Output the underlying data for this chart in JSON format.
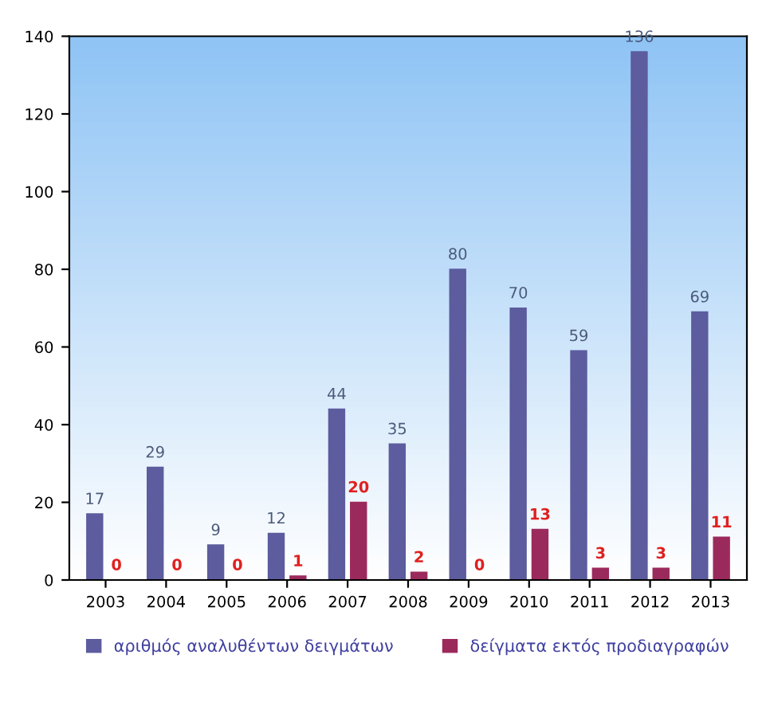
{
  "chart_data": {
    "type": "bar",
    "categories": [
      "2003",
      "2004",
      "2005",
      "2006",
      "2007",
      "2008",
      "2009",
      "2010",
      "2011",
      "2012",
      "2013"
    ],
    "series": [
      {
        "name": "αριθμός αναλυθέντων δειγμάτων",
        "color": "#5c5c9e",
        "values": [
          17,
          29,
          9,
          12,
          44,
          35,
          80,
          70,
          59,
          136,
          69
        ]
      },
      {
        "name": "δείγματα εκτός προδιαγραφών",
        "color": "#9b2a5c",
        "values": [
          0,
          0,
          0,
          1,
          20,
          2,
          0,
          13,
          3,
          3,
          11
        ]
      }
    ],
    "ylim": [
      0,
      140
    ],
    "yticks": [
      0,
      20,
      40,
      60,
      80,
      100,
      120,
      140
    ],
    "data_labels": true,
    "grid": false,
    "legend": "bottom"
  }
}
